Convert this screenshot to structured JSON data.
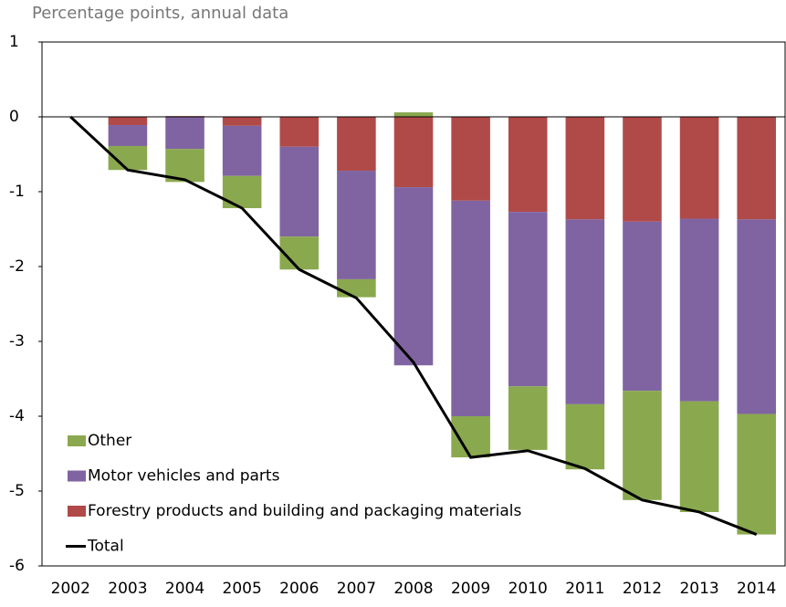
{
  "chart_data": {
    "type": "bar",
    "subtitle": "Percentage points, annual data",
    "categories": [
      "2002",
      "2003",
      "2004",
      "2005",
      "2006",
      "2007",
      "2008",
      "2009",
      "2010",
      "2011",
      "2012",
      "2013",
      "2014"
    ],
    "series": [
      {
        "name": "Other",
        "type": "bar",
        "color": "#8aa84e",
        "values": [
          0,
          -0.32,
          -0.44,
          -0.43,
          -0.44,
          -0.24,
          0.06,
          -0.55,
          -0.85,
          -0.87,
          -1.46,
          -1.48,
          -1.61
        ]
      },
      {
        "name": "Motor vehicles and parts",
        "type": "bar",
        "color": "#8064a2",
        "values": [
          0,
          -0.28,
          -0.43,
          -0.67,
          -1.2,
          -1.45,
          -2.38,
          -2.88,
          -2.33,
          -2.47,
          -2.26,
          -2.44,
          -2.6
        ]
      },
      {
        "name": "Forestry products and building and packaging materials",
        "type": "bar",
        "color": "#b04a48",
        "values": [
          0,
          -0.11,
          0.01,
          -0.12,
          -0.4,
          -0.72,
          -0.94,
          -1.12,
          -1.27,
          -1.37,
          -1.4,
          -1.36,
          -1.37
        ]
      },
      {
        "name": "Total",
        "type": "line",
        "color": "#000000",
        "values": [
          0,
          -0.71,
          -0.84,
          -1.22,
          -2.04,
          -2.42,
          -3.28,
          -4.55,
          -4.46,
          -4.7,
          -5.12,
          -5.28,
          -5.58
        ]
      }
    ],
    "ylim": [
      -6,
      1
    ],
    "yticks": [
      -6,
      -5,
      -4,
      -3,
      -2,
      -1,
      0,
      1
    ],
    "grid": false,
    "legend": "lower left"
  }
}
